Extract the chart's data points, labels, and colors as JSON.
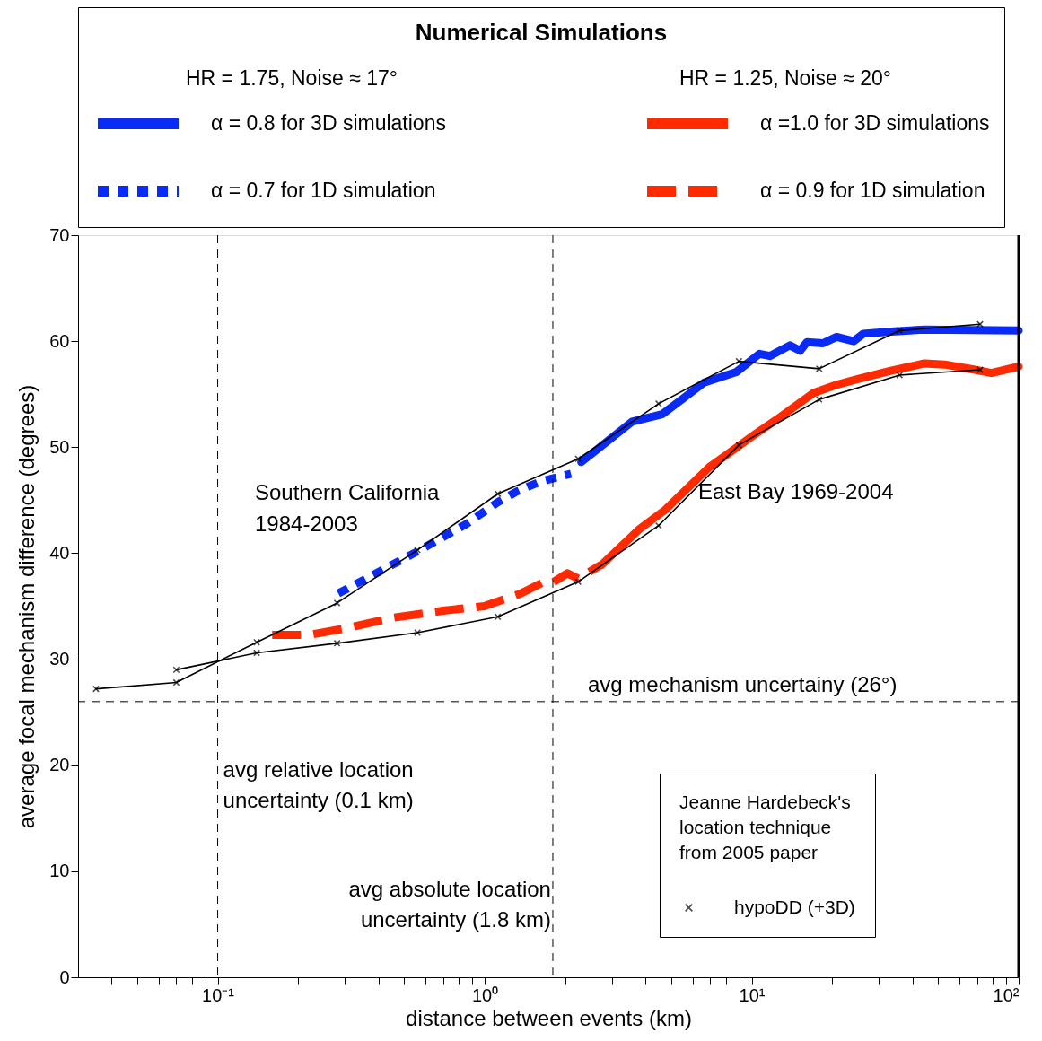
{
  "chart_data": {
    "type": "line",
    "legend_title": "Numerical Simulations",
    "legend": "top",
    "xlabel": "distance between events (km)",
    "ylabel": "average focal mechanism difference (degrees)",
    "log": "x",
    "grid": false,
    "xlim": [
      0.03,
      100
    ],
    "ylim": [
      0,
      70
    ],
    "xticks": [
      {
        "value": 0.04,
        "label": null
      },
      {
        "value": 0.05,
        "label": null
      },
      {
        "value": 0.06,
        "label": null
      },
      {
        "value": 0.07,
        "label": null
      },
      {
        "value": 0.08,
        "label": null
      },
      {
        "value": 0.09,
        "label": null
      },
      {
        "value": 0.1,
        "label": "10⁻¹"
      },
      {
        "value": 0.2,
        "label": null
      },
      {
        "value": 0.3,
        "label": null
      },
      {
        "value": 0.4,
        "label": null
      },
      {
        "value": 0.5,
        "label": null
      },
      {
        "value": 0.6,
        "label": null
      },
      {
        "value": 0.7,
        "label": null
      },
      {
        "value": 0.8,
        "label": null
      },
      {
        "value": 0.9,
        "label": null
      },
      {
        "value": 1,
        "label": "10⁰"
      },
      {
        "value": 2,
        "label": null
      },
      {
        "value": 3,
        "label": null
      },
      {
        "value": 4,
        "label": null
      },
      {
        "value": 5,
        "label": null
      },
      {
        "value": 6,
        "label": null
      },
      {
        "value": 7,
        "label": null
      },
      {
        "value": 8,
        "label": null
      },
      {
        "value": 9,
        "label": null
      },
      {
        "value": 10,
        "label": "10¹"
      },
      {
        "value": 20,
        "label": null
      },
      {
        "value": 30,
        "label": null
      },
      {
        "value": 40,
        "label": null
      },
      {
        "value": 50,
        "label": null
      },
      {
        "value": 60,
        "label": null
      },
      {
        "value": 70,
        "label": null
      },
      {
        "value": 80,
        "label": null
      },
      {
        "value": 90,
        "label": null
      },
      {
        "value": 100,
        "label": "10²"
      }
    ],
    "yticks": [
      0,
      10,
      20,
      30,
      40,
      50,
      60,
      70
    ],
    "series": [
      {
        "name": "α = 0.8 for 3D simulations",
        "color": "#0a2af5",
        "line_style": "solid",
        "marker": "none",
        "x": [
          2.3,
          3.56,
          4.62,
          6.64,
          8.77,
          10.7,
          11.7,
          13.9,
          15.2,
          16.1,
          18.5,
          20.8,
          24.1,
          26.2,
          33.3,
          44.4,
          100
        ],
        "values": [
          48.6,
          52.4,
          53.1,
          56.1,
          57.1,
          58.8,
          58.6,
          59.6,
          59.1,
          59.9,
          59.8,
          60.4,
          60.0,
          60.7,
          60.9,
          61.1,
          61.0
        ]
      },
      {
        "name": "α = 0.7 for 1D simulation",
        "color": "#0a2af5",
        "line_style": "dotted",
        "marker": "none",
        "x": [
          0.283,
          0.563,
          0.86,
          1.118,
          1.315,
          1.595,
          2.105
        ],
        "values": [
          36.2,
          40.2,
          42.8,
          44.8,
          45.8,
          46.7,
          47.5
        ]
      },
      {
        "name": "α =1.0 for 3D simulations",
        "color": "#ff2a00",
        "line_style": "solid",
        "marker": "none",
        "x": [
          2.74,
          3.77,
          4.75,
          6.93,
          10.4,
          12.4,
          17.0,
          20.9,
          24.8,
          33.2,
          44.4,
          52.8,
          68.5,
          79.1,
          100
        ],
        "values": [
          38.9,
          42.2,
          44.1,
          48.1,
          51.3,
          52.6,
          55.1,
          55.9,
          56.4,
          57.2,
          57.9,
          57.8,
          57.3,
          57.0,
          57.6
        ]
      },
      {
        "name": "α = 0.9 for 1D simulation",
        "color": "#ff2a00",
        "line_style": "dashed",
        "marker": "none",
        "x": [
          0.16,
          0.22,
          0.301,
          0.45,
          0.709,
          0.996,
          1.367,
          1.67,
          1.79,
          2.04,
          2.24,
          2.73
        ],
        "values": [
          32.3,
          32.3,
          32.9,
          33.9,
          34.6,
          35.0,
          36.2,
          37.3,
          37.2,
          38.1,
          37.6,
          38.9
        ]
      },
      {
        "name": "hypoDD (+3D)",
        "color": "#000000",
        "line_style": "solid",
        "marker": "cross",
        "x": [
          0.035,
          0.07,
          0.14,
          0.28,
          0.56,
          1.12,
          2.24,
          4.48,
          8.96,
          17.9,
          35.8,
          71.7
        ],
        "values": [
          27.2,
          27.8,
          31.6,
          35.3,
          40.3,
          45.6,
          48.9,
          54.1,
          58.1,
          57.4,
          61.0,
          61.6
        ]
      },
      {
        "color": "#000000",
        "line_style": "solid",
        "marker": "cross",
        "x": [
          0.07,
          0.14,
          0.28,
          0.56,
          1.12,
          2.24,
          4.48,
          8.96,
          17.9,
          35.8,
          71.7
        ],
        "values": [
          29.0,
          30.6,
          31.5,
          32.5,
          34.0,
          37.3,
          42.6,
          50.2,
          54.5,
          56.8,
          57.3
        ]
      }
    ],
    "ref_lines": [
      {
        "axis": "x",
        "value": 0.1,
        "label": "avg relative location\nuncertainty (0.1 km)",
        "line_style": "dashed"
      },
      {
        "axis": "x",
        "value": 1.8,
        "label": "avg absolute location\nuncertainty (1.8 km)",
        "line_style": "dashed"
      },
      {
        "axis": "y",
        "value": 26,
        "label": "avg mechanism uncertainy (26°)",
        "line_style": "dashed"
      },
      {
        "axis": "x",
        "value": 100,
        "line_style": "solid"
      }
    ],
    "annotations": [
      "HR = 1.75, Noise ≈ 17°",
      "HR = 1.25, Noise ≈ 20°",
      "Jeanne Hardebeck's\nlocation technique\nfrom 2005 paper",
      "Southern California\n1984-2003",
      "East Bay 1969-2004"
    ]
  }
}
